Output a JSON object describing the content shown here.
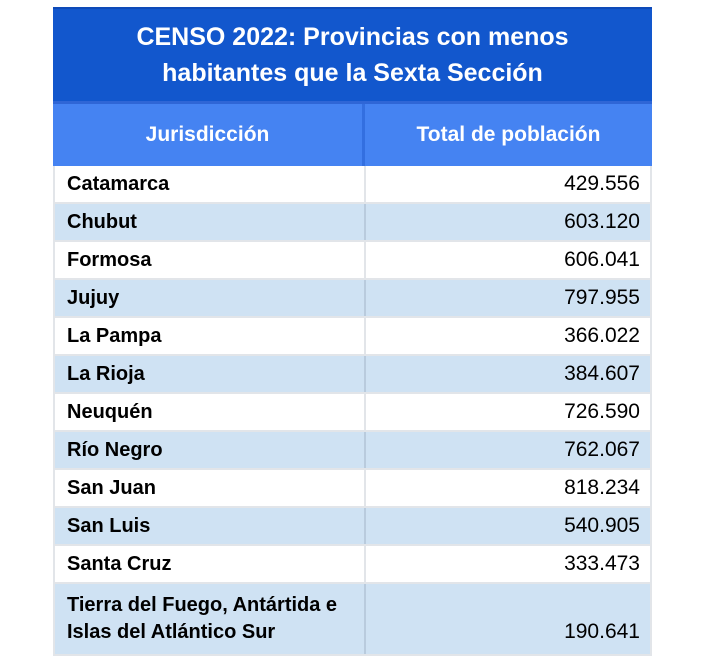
{
  "chart_data": {
    "type": "table",
    "title": "CENSO 2022: Provincias con menos habitantes que la Sexta Sección",
    "columns": [
      "Jurisdicción",
      "Total de población"
    ],
    "rows": [
      {
        "jurisdiccion": "Catamarca",
        "poblacion": "429.556"
      },
      {
        "jurisdiccion": "Chubut",
        "poblacion": "603.120"
      },
      {
        "jurisdiccion": "Formosa",
        "poblacion": "606.041"
      },
      {
        "jurisdiccion": "Jujuy",
        "poblacion": "797.955"
      },
      {
        "jurisdiccion": "La Pampa",
        "poblacion": "366.022"
      },
      {
        "jurisdiccion": "La Rioja",
        "poblacion": "384.607"
      },
      {
        "jurisdiccion": "Neuquén",
        "poblacion": "726.590"
      },
      {
        "jurisdiccion": "Río Negro",
        "poblacion": "762.067"
      },
      {
        "jurisdiccion": "San Juan",
        "poblacion": "818.234"
      },
      {
        "jurisdiccion": "San Luis",
        "poblacion": "540.905"
      },
      {
        "jurisdiccion": "Santa Cruz",
        "poblacion": "333.473"
      },
      {
        "jurisdiccion": "Tierra del Fuego, Antártida e Islas del Atlántico Sur",
        "poblacion": "190.641"
      }
    ],
    "values_numeric": [
      429556,
      603120,
      606041,
      797955,
      366022,
      384607,
      726590,
      762067,
      818234,
      540905,
      333473,
      190641
    ]
  },
  "colors": {
    "banner_blue": "#1257CD",
    "header_blue": "#4583F2",
    "stripe_blue": "#CFE2F3",
    "text_black": "#000000",
    "header_text_white": "#FFFFFF"
  }
}
